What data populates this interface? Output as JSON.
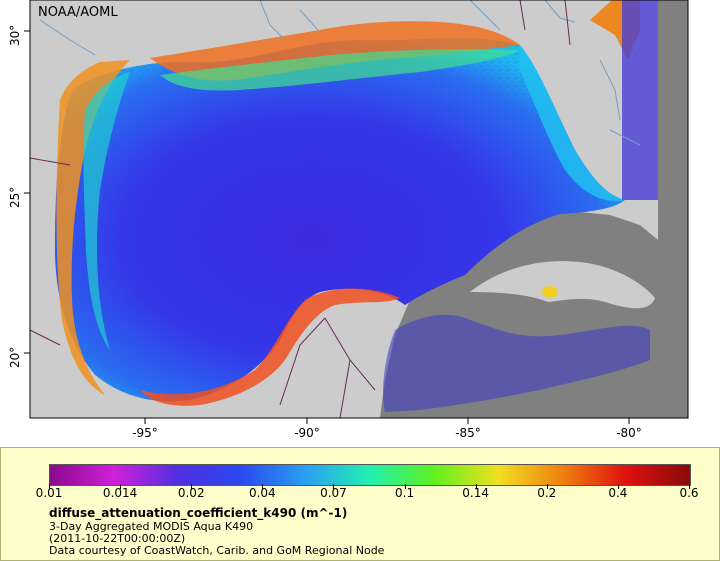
{
  "map": {
    "watermark": "NOAA/AOML",
    "x_ticks": [
      "-95°",
      "-90°",
      "-85°",
      "-80°"
    ],
    "y_ticks": [
      "30°",
      "25°",
      "20°"
    ],
    "colors": {
      "land": "#cccccc",
      "nodata": "#808080",
      "border": "#6a2a5a",
      "river": "#6fa0c8"
    }
  },
  "legend": {
    "ticks": [
      "0.01",
      "0.014",
      "0.02",
      "0.04",
      "0.07",
      "0.1",
      "0.14",
      "0.2",
      "0.4",
      "0.6"
    ],
    "colormap": [
      "#8a0a8c",
      "#d020d8",
      "#5030e0",
      "#2a4af0",
      "#2aa0f0",
      "#22f0b0",
      "#60f020",
      "#f0e020",
      "#f08010",
      "#e01010",
      "#8a0a0a"
    ],
    "variable": "diffuse_attenuation_coefficient_k490 (m^-1)",
    "description": "3-Day Aggregated MODIS Aqua K490",
    "time": "(2011-10-22T00:00:00Z)",
    "credit": "Data courtesy of CoastWatch, Carib. and GoM Regional Node"
  }
}
